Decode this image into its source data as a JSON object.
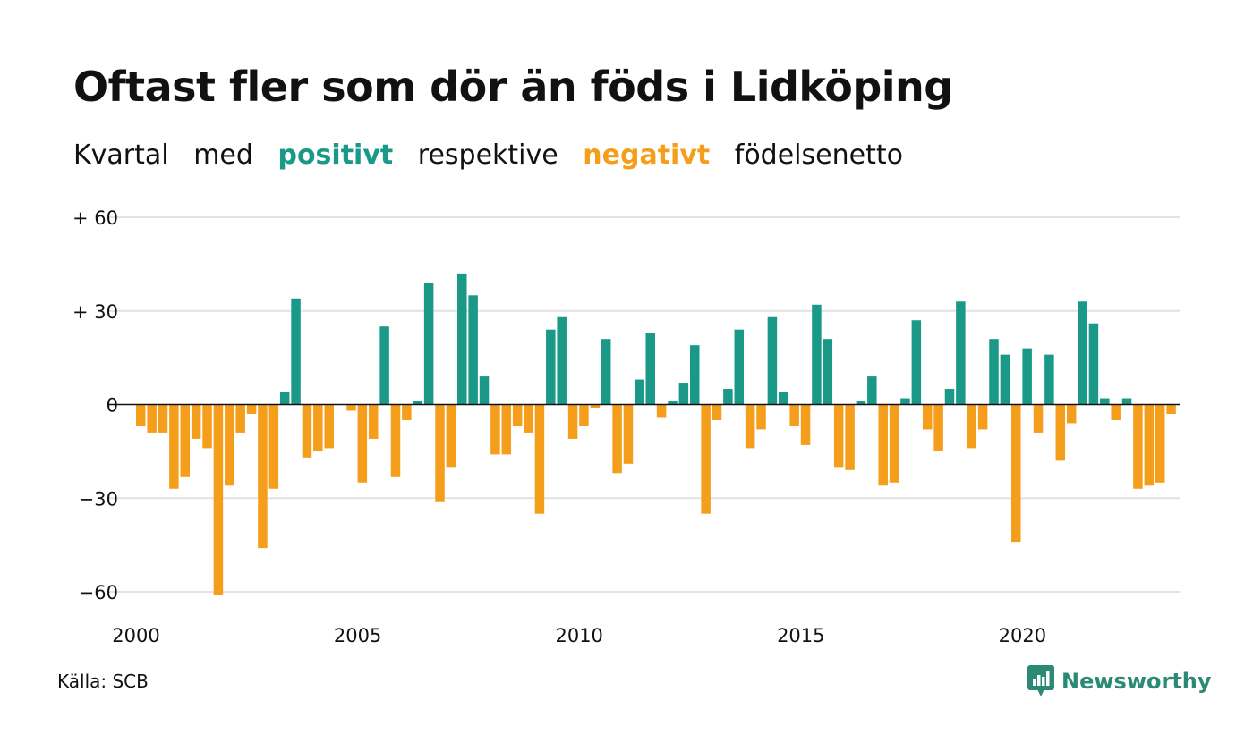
{
  "title": "Oftast fler som dör än föds i Lidköping",
  "subtitle": {
    "w1": "Kvartal",
    "w2": "med",
    "positive": "positivt",
    "w3": "respektive",
    "negative": "negativt",
    "w4": "födelsenetto"
  },
  "source": "Källa: SCB",
  "brand": "Newsworthy",
  "colors": {
    "positive": "#1a9988",
    "negative": "#f59e1b",
    "grid": "#e2e2e2",
    "zero": "#111111"
  },
  "chart_data": {
    "type": "bar",
    "ylim": [
      -60,
      60
    ],
    "y_ticks": [
      {
        "value": 60,
        "label": "+ 60"
      },
      {
        "value": 30,
        "label": "+ 30"
      },
      {
        "value": 0,
        "label": "0"
      },
      {
        "value": -30,
        "label": "−30"
      },
      {
        "value": -60,
        "label": "−60"
      }
    ],
    "x_ticks": [
      {
        "quarter_index": 0,
        "label": "2000"
      },
      {
        "quarter_index": 20,
        "label": "2005"
      },
      {
        "quarter_index": 40,
        "label": "2010"
      },
      {
        "quarter_index": 60,
        "label": "2015"
      },
      {
        "quarter_index": 80,
        "label": "2020"
      }
    ],
    "start_year": 2000,
    "values": [
      -7,
      -9,
      -9,
      -27,
      -23,
      -11,
      -14,
      -61,
      -26,
      -9,
      -3,
      -46,
      -27,
      4,
      34,
      -17,
      -15,
      -14,
      0,
      -2,
      -25,
      -11,
      25,
      -23,
      -5,
      1,
      39,
      -31,
      -20,
      42,
      35,
      9,
      -16,
      -16,
      -7,
      -9,
      -35,
      24,
      28,
      -11,
      -7,
      -1,
      21,
      -22,
      -19,
      8,
      23,
      -4,
      1,
      7,
      19,
      -35,
      -5,
      5,
      24,
      -14,
      -8,
      28,
      4,
      -7,
      -13,
      32,
      21,
      -20,
      -21,
      1,
      9,
      -26,
      -25,
      2,
      27,
      -8,
      -15,
      5,
      33,
      -14,
      -8,
      21,
      16,
      -44,
      18,
      -9,
      16,
      -18,
      -6,
      33,
      26,
      2,
      -5,
      2,
      -27,
      -26,
      -25,
      -3
    ]
  }
}
